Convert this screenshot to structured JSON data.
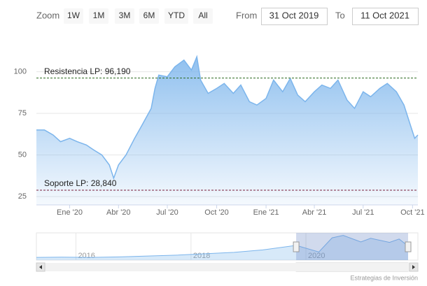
{
  "range_selector": {
    "zoom_label": "Zoom",
    "buttons": [
      "1W",
      "1M",
      "3M",
      "6M",
      "YTD",
      "All"
    ],
    "from_label": "From",
    "from": "31 Oct 2019",
    "to_label": "To",
    "to": "11 Oct 2021"
  },
  "chart_data": {
    "type": "area",
    "x": [
      "2019-10-31",
      "2019-11-15",
      "2019-12-01",
      "2019-12-15",
      "2020-01-01",
      "2020-01-15",
      "2020-02-01",
      "2020-02-15",
      "2020-03-01",
      "2020-03-15",
      "2020-03-23",
      "2020-04-01",
      "2020-04-15",
      "2020-05-01",
      "2020-05-15",
      "2020-06-01",
      "2020-06-08",
      "2020-06-15",
      "2020-07-01",
      "2020-07-15",
      "2020-08-01",
      "2020-08-15",
      "2020-08-25",
      "2020-09-01",
      "2020-09-15",
      "2020-10-01",
      "2020-10-15",
      "2020-11-01",
      "2020-11-15",
      "2020-12-01",
      "2020-12-15",
      "2021-01-01",
      "2021-01-15",
      "2021-02-01",
      "2021-02-15",
      "2021-03-01",
      "2021-03-15",
      "2021-04-01",
      "2021-04-15",
      "2021-05-01",
      "2021-05-15",
      "2021-06-01",
      "2021-06-15",
      "2021-07-01",
      "2021-07-15",
      "2021-08-01",
      "2021-08-15",
      "2021-09-01",
      "2021-09-15",
      "2021-09-25",
      "2021-10-05",
      "2021-10-11"
    ],
    "series": [
      {
        "color": "#7cb5ec",
        "values": [
          65,
          65,
          62,
          58,
          60,
          58,
          56,
          53,
          50,
          44,
          36,
          44,
          50,
          60,
          68,
          78,
          90,
          98,
          97,
          103,
          107,
          101,
          109,
          95,
          87,
          90,
          93,
          87,
          92,
          82,
          80,
          84,
          95,
          88,
          96,
          86,
          82,
          88,
          92,
          90,
          95,
          83,
          78,
          88,
          85,
          90,
          93,
          88,
          80,
          70,
          60,
          62
        ]
      }
    ],
    "xlim": [
      "2019-10-31",
      "2021-10-11"
    ],
    "xticks": [
      {
        "value": "2020-01-01",
        "label": "Ene '20"
      },
      {
        "value": "2020-04-01",
        "label": "Abr '20"
      },
      {
        "value": "2020-07-01",
        "label": "Jul '20"
      },
      {
        "value": "2020-10-01",
        "label": "Oct '20"
      },
      {
        "value": "2021-01-01",
        "label": "Ene '21"
      },
      {
        "value": "2021-04-01",
        "label": "Abr '21"
      },
      {
        "value": "2021-07-01",
        "label": "Jul '21"
      },
      {
        "value": "2021-10-01",
        "label": "Oct '21"
      }
    ],
    "ylim": [
      20,
      120
    ],
    "yticks": [
      25,
      50,
      75,
      100
    ],
    "grid": true,
    "plot_lines": [
      {
        "label": "Resistencia LP: 96,190",
        "value": 96.19,
        "color": "#2d6a1f"
      },
      {
        "label": "Soporte LP: 28,840",
        "value": 28.84,
        "color": "#7a1f3a"
      }
    ]
  },
  "navigator": {
    "x": [
      "2015-04-25",
      "2015-10-01",
      "2016-04-01",
      "2016-10-01",
      "2017-04-01",
      "2017-10-01",
      "2018-04-01",
      "2018-10-01",
      "2019-04-01",
      "2019-10-31",
      "2020-03-23",
      "2020-06-15",
      "2020-08-25",
      "2020-12-15",
      "2021-02-15",
      "2021-06-15",
      "2021-08-15",
      "2021-10-11"
    ],
    "values": [
      12,
      13,
      12,
      14,
      18,
      22,
      28,
      34,
      45,
      65,
      36,
      98,
      109,
      80,
      96,
      78,
      93,
      62
    ],
    "color": "#7cb5ec",
    "xlim": [
      "2015-04-25",
      "2021-10-11"
    ],
    "ylim": [
      0,
      120
    ],
    "xticks": [
      {
        "value": "2016-01-01",
        "label": "2016"
      },
      {
        "value": "2018-01-01",
        "label": "2018"
      },
      {
        "value": "2020-01-01",
        "label": "2020"
      }
    ]
  },
  "credit": "Estrategias de Inversión"
}
